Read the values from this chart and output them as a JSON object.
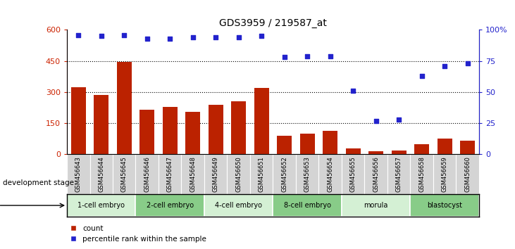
{
  "title": "GDS3959 / 219587_at",
  "samples": [
    "GSM456643",
    "GSM456644",
    "GSM456645",
    "GSM456646",
    "GSM456647",
    "GSM456648",
    "GSM456649",
    "GSM456650",
    "GSM456651",
    "GSM456652",
    "GSM456653",
    "GSM456654",
    "GSM456655",
    "GSM456656",
    "GSM456657",
    "GSM456658",
    "GSM456659",
    "GSM456660"
  ],
  "counts": [
    325,
    285,
    445,
    215,
    230,
    205,
    240,
    255,
    320,
    90,
    100,
    115,
    30,
    15,
    20,
    50,
    75,
    65
  ],
  "percentile_ranks": [
    96,
    95,
    96,
    93,
    93,
    94,
    94,
    94,
    95,
    78,
    79,
    79,
    51,
    27,
    28,
    63,
    71,
    73
  ],
  "stages": [
    {
      "label": "1-cell embryo",
      "start": 0,
      "end": 3
    },
    {
      "label": "2-cell embryo",
      "start": 3,
      "end": 6
    },
    {
      "label": "4-cell embryo",
      "start": 6,
      "end": 9
    },
    {
      "label": "8-cell embryo",
      "start": 9,
      "end": 12
    },
    {
      "label": "morula",
      "start": 12,
      "end": 15
    },
    {
      "label": "blastocyst",
      "start": 15,
      "end": 18
    }
  ],
  "stage_alt_colors": [
    "#e8f8e8",
    "#c0e8c0",
    "#e8f8e8",
    "#c0e8c0",
    "#e8f8e8",
    "#c0e8c0"
  ],
  "bar_color": "#bb2200",
  "dot_color": "#2222cc",
  "left_ylim": [
    0,
    600
  ],
  "left_yticks": [
    0,
    150,
    300,
    450,
    600
  ],
  "right_ylim": [
    0,
    100
  ],
  "right_yticks": [
    0,
    25,
    50,
    75,
    100
  ],
  "xlabel_stage": "development stage",
  "legend_count": "count",
  "legend_percentile": "percentile rank within the sample",
  "left_tick_color": "#cc2200",
  "right_tick_color": "#2222cc",
  "grid_color": "#000000",
  "sample_bg_color": "#d4d4d4",
  "stage_green_light": "#d4f0d4",
  "stage_green_dark": "#88cc88"
}
